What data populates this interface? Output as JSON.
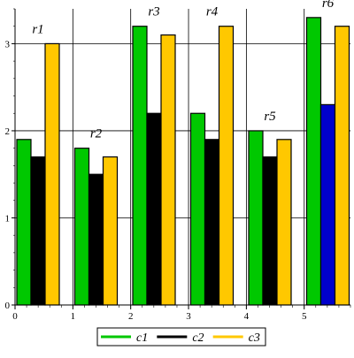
{
  "chart_data": {
    "type": "bar",
    "categories": [
      "r1",
      "r2",
      "r3",
      "r4",
      "r5",
      "r6"
    ],
    "category_labels_shown": [
      "r1",
      "r2",
      "r3",
      "r4",
      "r5",
      "r6"
    ],
    "series": [
      {
        "name": "c1",
        "values": [
          1.9,
          1.8,
          3.2,
          2.2,
          2.0,
          3.3
        ],
        "color": "#00c800"
      },
      {
        "name": "c2",
        "values": [
          1.7,
          1.5,
          2.2,
          1.9,
          1.7,
          2.3
        ],
        "color": "#000000"
      },
      {
        "name": "c3",
        "values": [
          3.0,
          1.7,
          3.1,
          3.2,
          1.9,
          3.2
        ],
        "color": "#ffc800"
      }
    ],
    "highlighted_bar": {
      "category": "r6",
      "series": "c2",
      "color": "#0000cc"
    },
    "x_ticks": [
      "0",
      "1",
      "2",
      "3",
      "4",
      "5"
    ],
    "y_ticks": [
      "0",
      "1",
      "2",
      "3"
    ],
    "xlim": [
      0,
      5.8
    ],
    "ylim": [
      0,
      3.4
    ],
    "grid": true,
    "legend_position": "bottom-center",
    "title": "",
    "xlabel": "",
    "ylabel": ""
  }
}
